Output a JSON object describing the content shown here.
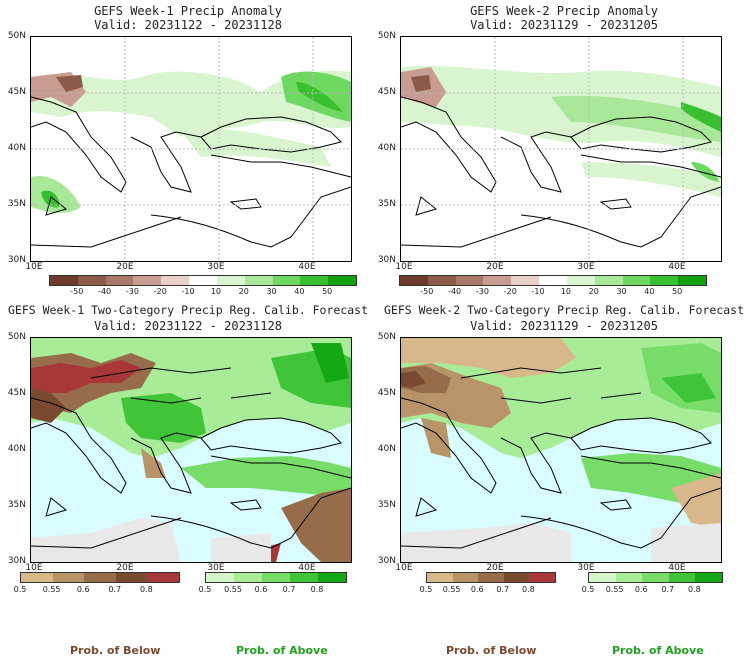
{
  "panels": [
    {
      "title_line1": "GEFS Week-1 Precip Anomaly",
      "title_line2": "Valid: 20231122 - 20231128"
    },
    {
      "title_line1": "GEFS Week-2 Precip Anomaly",
      "title_line2": "Valid: 20231129 - 20231205"
    },
    {
      "title_line1": "GEFS Week-1 Two-Category Precip Reg. Calib. Forecast",
      "title_line2": "Valid: 20231122 - 20231128"
    },
    {
      "title_line1": "GEFS Week-2 Two-Category Precip Reg. Calib. Forecast",
      "title_line2": "Valid: 20231129 - 20231205"
    }
  ],
  "axes": {
    "lat_labels": [
      "50N",
      "45N",
      "40N",
      "35N",
      "30N"
    ],
    "lon_labels": [
      "10E",
      "20E",
      "30E",
      "40E"
    ]
  },
  "anomaly_colorbar": {
    "labels": [
      "-50",
      "-40",
      "-30",
      "-20",
      "-10",
      "10",
      "20",
      "30",
      "40",
      "50"
    ],
    "colors": [
      "#6b3a2a",
      "#8b5a48",
      "#a87868",
      "#c89c90",
      "#e8cfc8",
      "#ffffff",
      "#d8f5d0",
      "#a8e898",
      "#6fd860",
      "#38c030",
      "#10a010"
    ]
  },
  "prob_below_colorbar": {
    "labels": [
      "0.5",
      "0.55",
      "0.6",
      "0.7",
      "0.8"
    ],
    "colors": [
      "#d8b88a",
      "#b89468",
      "#966c4a",
      "#7a4a30",
      "#a83838"
    ]
  },
  "prob_above_colorbar": {
    "labels": [
      "0.5",
      "0.55",
      "0.6",
      "0.7",
      "0.8"
    ],
    "colors": [
      "#d4f8cc",
      "#a8ec98",
      "#78dc68",
      "#40c438",
      "#14a814"
    ]
  },
  "footers": {
    "below": "Prob. of Below",
    "above": "Prob. of Above"
  },
  "legend_colors": {
    "below": "#7a4a30",
    "above": "#20a020"
  }
}
